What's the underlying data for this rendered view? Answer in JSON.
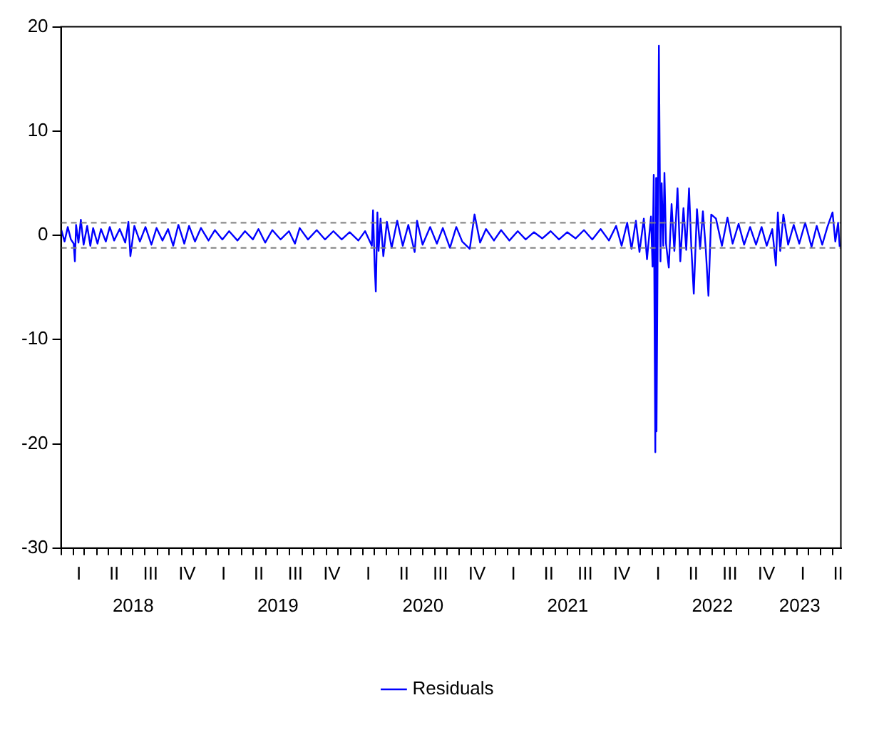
{
  "chart_data": {
    "type": "line",
    "xlim": [
      "2018-01-01",
      "2023-05-22"
    ],
    "ylim": [
      -30,
      20
    ],
    "yticks": [
      -30,
      -20,
      -10,
      0,
      10,
      20
    ],
    "xticks": [
      {
        "value": "2018-01-01",
        "label": null
      },
      {
        "value": "2018-02-01",
        "label": null
      },
      {
        "value": "2018-03-01",
        "label": null
      },
      {
        "value": "2018-04-01",
        "label": null
      },
      {
        "value": "2018-05-01",
        "label": null
      },
      {
        "value": "2018-06-01",
        "label": null
      },
      {
        "value": "2018-07-01",
        "label": null
      },
      {
        "value": "2018-07-02",
        "label": "2018"
      },
      {
        "value": "2018-08-01",
        "label": null
      },
      {
        "value": "2018-09-01",
        "label": null
      },
      {
        "value": "2018-10-01",
        "label": null
      },
      {
        "value": "2018-11-01",
        "label": null
      },
      {
        "value": "2018-12-01",
        "label": null
      },
      {
        "value": "2019-01-01",
        "label": null
      },
      {
        "value": "2019-02-01",
        "label": null
      },
      {
        "value": "2019-03-01",
        "label": null
      },
      {
        "value": "2019-04-01",
        "label": null
      },
      {
        "value": "2019-05-01",
        "label": null
      },
      {
        "value": "2019-06-01",
        "label": null
      },
      {
        "value": "2019-07-01",
        "label": null
      },
      {
        "value": "2019-07-02",
        "label": "2019"
      },
      {
        "value": "2019-08-01",
        "label": null
      },
      {
        "value": "2019-09-01",
        "label": null
      },
      {
        "value": "2019-10-01",
        "label": null
      },
      {
        "value": "2019-11-01",
        "label": null
      },
      {
        "value": "2019-12-01",
        "label": null
      },
      {
        "value": "2020-01-01",
        "label": null
      },
      {
        "value": "2020-02-01",
        "label": null
      },
      {
        "value": "2020-03-01",
        "label": null
      },
      {
        "value": "2020-04-01",
        "label": null
      },
      {
        "value": "2020-05-01",
        "label": null
      },
      {
        "value": "2020-06-01",
        "label": null
      },
      {
        "value": "2020-07-01",
        "label": null
      },
      {
        "value": "2020-07-02",
        "label": "2020"
      },
      {
        "value": "2020-08-01",
        "label": null
      },
      {
        "value": "2020-09-01",
        "label": null
      },
      {
        "value": "2020-10-01",
        "label": null
      },
      {
        "value": "2020-11-01",
        "label": null
      },
      {
        "value": "2020-12-01",
        "label": null
      },
      {
        "value": "2021-01-01",
        "label": null
      },
      {
        "value": "2021-02-01",
        "label": null
      },
      {
        "value": "2021-03-01",
        "label": null
      },
      {
        "value": "2021-04-01",
        "label": null
      },
      {
        "value": "2021-05-01",
        "label": null
      },
      {
        "value": "2021-06-01",
        "label": null
      },
      {
        "value": "2021-07-01",
        "label": null
      },
      {
        "value": "2021-07-02",
        "label": "2021"
      },
      {
        "value": "2021-08-01",
        "label": null
      },
      {
        "value": "2021-09-01",
        "label": null
      },
      {
        "value": "2021-10-01",
        "label": null
      },
      {
        "value": "2021-11-01",
        "label": null
      },
      {
        "value": "2021-12-01",
        "label": null
      },
      {
        "value": "2022-01-01",
        "label": null
      },
      {
        "value": "2022-02-01",
        "label": null
      },
      {
        "value": "2022-03-01",
        "label": null
      },
      {
        "value": "2022-04-01",
        "label": null
      },
      {
        "value": "2022-05-01",
        "label": null
      },
      {
        "value": "2022-06-01",
        "label": null
      },
      {
        "value": "2022-07-01",
        "label": null
      },
      {
        "value": "2022-07-02",
        "label": "2022"
      },
      {
        "value": "2022-08-01",
        "label": null
      },
      {
        "value": "2022-09-01",
        "label": null
      },
      {
        "value": "2022-10-01",
        "label": null
      },
      {
        "value": "2022-11-01",
        "label": null
      },
      {
        "value": "2022-12-01",
        "label": null
      },
      {
        "value": "2023-01-01",
        "label": null
      },
      {
        "value": "2023-02-01",
        "label": null
      },
      {
        "value": "2023-02-07",
        "label": "2023"
      },
      {
        "value": "2023-03-01",
        "label": null
      },
      {
        "value": "2023-04-01",
        "label": null
      },
      {
        "value": "2023-05-01",
        "label": null
      }
    ],
    "annotations": [
      "I",
      "II",
      "III",
      "IV",
      "I",
      "II",
      "III",
      "IV",
      "I",
      "II",
      "III",
      "IV",
      "I",
      "II",
      "III",
      "IV",
      "I",
      "II",
      "III",
      "IV",
      "I",
      "II"
    ],
    "grid": false,
    "legend": "bottom",
    "marker": "none",
    "line_style": "solid",
    "ref_lines": [
      {
        "axis": "y",
        "value": 1.2,
        "color": "#808080",
        "line_style": "dashed"
      },
      {
        "axis": "y",
        "value": -1.2,
        "color": "#808080",
        "line_style": "dashed"
      }
    ],
    "x": [
      "2018-01-02",
      "2018-01-10",
      "2018-01-18",
      "2018-01-26",
      "2018-02-02",
      "2018-02-05",
      "2018-02-08",
      "2018-02-14",
      "2018-02-20",
      "2018-02-27",
      "2018-03-08",
      "2018-03-16",
      "2018-03-23",
      "2018-04-03",
      "2018-04-12",
      "2018-04-24",
      "2018-05-04",
      "2018-05-15",
      "2018-05-29",
      "2018-06-12",
      "2018-06-20",
      "2018-06-25",
      "2018-07-05",
      "2018-07-19",
      "2018-08-02",
      "2018-08-17",
      "2018-08-30",
      "2018-09-14",
      "2018-09-28",
      "2018-10-11",
      "2018-10-24",
      "2018-11-08",
      "2018-11-20",
      "2018-12-05",
      "2018-12-20",
      "2019-01-08",
      "2019-01-24",
      "2019-02-12",
      "2019-03-01",
      "2019-03-22",
      "2019-04-10",
      "2019-04-30",
      "2019-05-14",
      "2019-05-31",
      "2019-06-18",
      "2019-07-09",
      "2019-07-30",
      "2019-08-14",
      "2019-08-26",
      "2019-09-16",
      "2019-10-08",
      "2019-10-29",
      "2019-11-19",
      "2019-12-10",
      "2019-12-30",
      "2020-01-21",
      "2020-02-07",
      "2020-02-24",
      "2020-02-27",
      "2020-03-02",
      "2020-03-05",
      "2020-03-09",
      "2020-03-12",
      "2020-03-17",
      "2020-03-24",
      "2020-04-02",
      "2020-04-14",
      "2020-04-28",
      "2020-05-12",
      "2020-05-26",
      "2020-06-11",
      "2020-06-17",
      "2020-07-01",
      "2020-07-20",
      "2020-08-06",
      "2020-08-21",
      "2020-09-08",
      "2020-09-24",
      "2020-10-09",
      "2020-10-28",
      "2020-11-09",
      "2020-11-23",
      "2020-12-08",
      "2020-12-28",
      "2021-01-15",
      "2021-02-05",
      "2021-02-26",
      "2021-03-18",
      "2021-04-08",
      "2021-04-29",
      "2021-05-20",
      "2021-06-10",
      "2021-07-01",
      "2021-07-22",
      "2021-08-12",
      "2021-09-02",
      "2021-09-23",
      "2021-10-14",
      "2021-11-01",
      "2021-11-15",
      "2021-11-29",
      "2021-12-10",
      "2021-12-21",
      "2021-12-30",
      "2022-01-10",
      "2022-01-18",
      "2022-01-28",
      "2022-02-01",
      "2022-02-04",
      "2022-02-08",
      "2022-02-10",
      "2022-02-11",
      "2022-02-17",
      "2022-02-21",
      "2022-02-24",
      "2022-02-28",
      "2022-03-03",
      "2022-03-07",
      "2022-03-14",
      "2022-03-21",
      "2022-03-28",
      "2022-04-05",
      "2022-04-12",
      "2022-04-20",
      "2022-04-27",
      "2022-05-04",
      "2022-05-10",
      "2022-05-16",
      "2022-05-24",
      "2022-06-01",
      "2022-06-08",
      "2022-06-15",
      "2022-06-22",
      "2022-06-29",
      "2022-07-11",
      "2022-07-26",
      "2022-08-09",
      "2022-08-22",
      "2022-09-06",
      "2022-09-20",
      "2022-10-05",
      "2022-10-20",
      "2022-11-03",
      "2022-11-16",
      "2022-11-30",
      "2022-12-09",
      "2022-12-14",
      "2022-12-20",
      "2022-12-28",
      "2023-01-09",
      "2023-01-23",
      "2023-02-06",
      "2023-02-21",
      "2023-03-09",
      "2023-03-22",
      "2023-04-05",
      "2023-04-18",
      "2023-05-01",
      "2023-05-08",
      "2023-05-15",
      "2023-05-19"
    ],
    "series": [
      {
        "name": "Residuals",
        "color": "#0000ff",
        "values": [
          0.5,
          -0.6,
          0.8,
          -0.4,
          -0.8,
          -2.5,
          1.0,
          -0.7,
          1.5,
          -0.9,
          0.9,
          -1.0,
          0.7,
          -0.8,
          0.6,
          -0.6,
          0.8,
          -0.5,
          0.6,
          -0.7,
          1.3,
          -2.0,
          0.9,
          -0.6,
          0.8,
          -0.9,
          0.7,
          -0.5,
          0.6,
          -1.0,
          1.0,
          -0.8,
          0.9,
          -0.6,
          0.7,
          -0.5,
          0.5,
          -0.4,
          0.4,
          -0.5,
          0.4,
          -0.4,
          0.6,
          -0.7,
          0.5,
          -0.4,
          0.4,
          -0.8,
          0.7,
          -0.4,
          0.5,
          -0.4,
          0.4,
          -0.4,
          0.3,
          -0.5,
          0.4,
          -1.0,
          2.4,
          -2.8,
          -5.4,
          2.2,
          -1.5,
          1.6,
          -2.0,
          1.3,
          -1.2,
          1.4,
          -1.0,
          1.0,
          -1.6,
          1.4,
          -0.9,
          0.8,
          -0.8,
          0.7,
          -1.2,
          0.8,
          -0.6,
          -1.3,
          2.0,
          -0.7,
          0.6,
          -0.5,
          0.5,
          -0.5,
          0.4,
          -0.4,
          0.3,
          -0.3,
          0.4,
          -0.4,
          0.3,
          -0.3,
          0.5,
          -0.4,
          0.6,
          -0.5,
          0.9,
          -1.0,
          1.2,
          -1.3,
          1.4,
          -1.6,
          1.6,
          -2.3,
          1.8,
          -3.0,
          5.8,
          -20.8,
          5.5,
          -18.8,
          18.2,
          -2.5,
          5.0,
          -1.0,
          6.0,
          -0.8,
          -3.1,
          3.0,
          -1.5,
          4.5,
          -2.5,
          2.6,
          -1.4,
          4.5,
          -1.3,
          -5.6,
          2.5,
          -1.3,
          2.3,
          -1.2,
          -5.8,
          2.0,
          1.6,
          -1.0,
          1.7,
          -0.8,
          1.1,
          -0.9,
          0.8,
          -0.9,
          0.8,
          -1.0,
          0.6,
          -2.9,
          2.2,
          -1.5,
          2.0,
          -0.9,
          1.0,
          -0.8,
          1.2,
          -1.1,
          0.9,
          -0.9,
          0.8,
          2.2,
          -0.6,
          1.2,
          -1.1
        ]
      }
    ]
  }
}
